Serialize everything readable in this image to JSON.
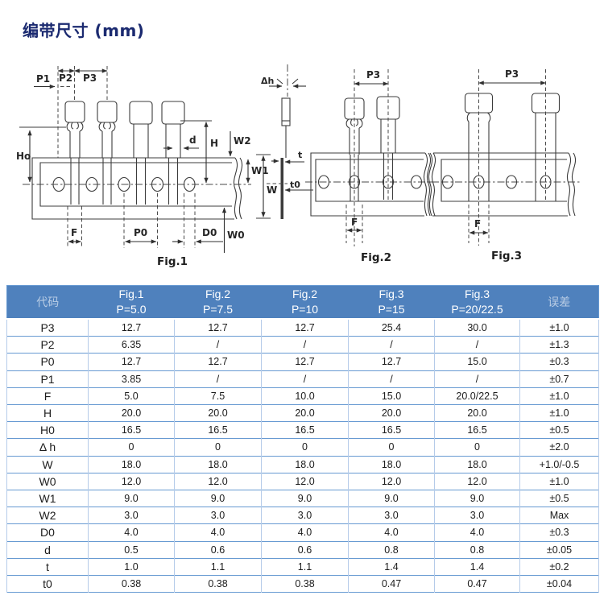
{
  "page": {
    "title": "编带尺寸 (mm)"
  },
  "colors": {
    "header_bg": "#4f81bd",
    "title_text": "#1b2a70",
    "grid_strong": "#679ad2",
    "grid_light": "#b5cbe9",
    "diagram_stroke": "#3c3c3c"
  },
  "diagram": {
    "labels": {
      "p1": "P1",
      "p2": "P2",
      "p3": "P3",
      "h0": "Ho",
      "d": "d",
      "h": "H",
      "w2": "W2",
      "w1": "W1",
      "w": "W",
      "f": "F",
      "p0": "P0",
      "d0": "D0",
      "w0": "W0",
      "dh": "Δh",
      "t": "t",
      "t0": "t0",
      "fig1": "Fig.1",
      "fig2": "Fig.2",
      "fig3": "Fig.3"
    }
  },
  "table": {
    "columns": [
      {
        "line1": "代码",
        "line2": "",
        "muted": true
      },
      {
        "line1": "Fig.1",
        "line2": "P=5.0",
        "muted": false
      },
      {
        "line1": "Fig.2",
        "line2": "P=7.5",
        "muted": false
      },
      {
        "line1": "Fig.2",
        "line2": "P=10",
        "muted": false
      },
      {
        "line1": "Fig.3",
        "line2": "P=15",
        "muted": false
      },
      {
        "line1": "Fig.3",
        "line2": "P=20/22.5",
        "muted": false
      },
      {
        "line1": "误差",
        "line2": "",
        "muted": true
      }
    ],
    "rows": [
      {
        "code": "P3",
        "values": [
          "12.7",
          "12.7",
          "12.7",
          "25.4",
          "30.0"
        ],
        "tolerance": "±1.0"
      },
      {
        "code": "P2",
        "values": [
          "6.35",
          "/",
          "/",
          "/",
          "/"
        ],
        "tolerance": "±1.3"
      },
      {
        "code": "P0",
        "values": [
          "12.7",
          "12.7",
          "12.7",
          "12.7",
          "15.0"
        ],
        "tolerance": "±0.3"
      },
      {
        "code": "P1",
        "values": [
          "3.85",
          "/",
          "/",
          "/",
          "/"
        ],
        "tolerance": "±0.7"
      },
      {
        "code": "F",
        "values": [
          "5.0",
          "7.5",
          "10.0",
          "15.0",
          "20.0/22.5"
        ],
        "tolerance": "±1.0"
      },
      {
        "code": "H",
        "values": [
          "20.0",
          "20.0",
          "20.0",
          "20.0",
          "20.0"
        ],
        "tolerance": "±1.0"
      },
      {
        "code": "H0",
        "values": [
          "16.5",
          "16.5",
          "16.5",
          "16.5",
          "16.5"
        ],
        "tolerance": "±0.5"
      },
      {
        "code": "Δ h",
        "values": [
          "0",
          "0",
          "0",
          "0",
          "0"
        ],
        "tolerance": "±2.0"
      },
      {
        "code": "W",
        "values": [
          "18.0",
          "18.0",
          "18.0",
          "18.0",
          "18.0"
        ],
        "tolerance": "+1.0/-0.5"
      },
      {
        "code": "W0",
        "values": [
          "12.0",
          "12.0",
          "12.0",
          "12.0",
          "12.0"
        ],
        "tolerance": "±1.0"
      },
      {
        "code": "W1",
        "values": [
          "9.0",
          "9.0",
          "9.0",
          "9.0",
          "9.0"
        ],
        "tolerance": "±0.5"
      },
      {
        "code": "W2",
        "values": [
          "3.0",
          "3.0",
          "3.0",
          "3.0",
          "3.0"
        ],
        "tolerance": "Max"
      },
      {
        "code": "D0",
        "values": [
          "4.0",
          "4.0",
          "4.0",
          "4.0",
          "4.0"
        ],
        "tolerance": "±0.3"
      },
      {
        "code": "d",
        "values": [
          "0.5",
          "0.6",
          "0.6",
          "0.8",
          "0.8"
        ],
        "tolerance": "±0.05"
      },
      {
        "code": "t",
        "values": [
          "1.0",
          "1.1",
          "1.1",
          "1.4",
          "1.4"
        ],
        "tolerance": "±0.2"
      },
      {
        "code": "t0",
        "values": [
          "0.38",
          "0.38",
          "0.38",
          "0.47",
          "0.47"
        ],
        "tolerance": "±0.04"
      }
    ]
  }
}
